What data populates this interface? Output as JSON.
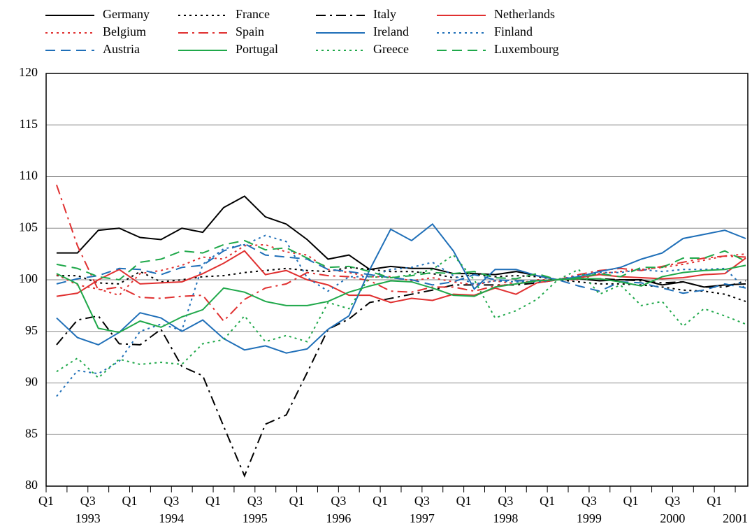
{
  "chart_data": {
    "type": "line",
    "categories": [
      "Q1",
      null,
      "Q3",
      null,
      "Q1",
      null,
      "Q3",
      null,
      "Q1",
      null,
      "Q3",
      null,
      "Q1",
      null,
      "Q3",
      null,
      "Q1",
      null,
      "Q3",
      null,
      "Q1",
      null,
      "Q3",
      null,
      "Q1",
      null,
      "Q3",
      null,
      "Q1",
      null,
      "Q3",
      null,
      "Q1",
      null
    ],
    "x_group_labels": [
      null,
      null,
      "1993",
      null,
      null,
      null,
      "1994",
      null,
      null,
      null,
      "1995",
      null,
      null,
      null,
      "1996",
      null,
      null,
      null,
      "1997",
      null,
      null,
      null,
      "1998",
      null,
      null,
      null,
      "1999",
      null,
      null,
      null,
      "2000",
      null,
      null,
      "2001"
    ],
    "ylim": [
      80,
      120
    ],
    "yticks": [
      80,
      85,
      90,
      95,
      100,
      105,
      110,
      115,
      120
    ],
    "grid": true,
    "series": [
      {
        "name": "Germany",
        "color": "#000000",
        "dash": "solid",
        "values": [
          102.6,
          102.6,
          104.8,
          105,
          104.1,
          103.9,
          105,
          104.6,
          107,
          108.1,
          106.1,
          105.4,
          103.9,
          102,
          102.4,
          101,
          101.3,
          101.1,
          101.1,
          100.6,
          100.6,
          100.5,
          100.8,
          100.4,
          100,
          100.1,
          99.9,
          100,
          100,
          99.5,
          99.8,
          99.3,
          99.5,
          99.6
        ]
      },
      {
        "name": "France",
        "color": "#000000",
        "dash": "dotted",
        "values": [
          100.4,
          100.4,
          99.7,
          99.6,
          100.8,
          99.8,
          100,
          100.3,
          100.4,
          100.7,
          100.9,
          101.1,
          100.9,
          100.8,
          101.2,
          101,
          100.8,
          100.8,
          100.6,
          100.2,
          100.5,
          100.3,
          100.4,
          100.3,
          100,
          99.8,
          99.6,
          99.6,
          99.5,
          99.3,
          99,
          98.9,
          98.6,
          97.9
        ]
      },
      {
        "name": "Italy",
        "color": "#000000",
        "dash": "dashdot",
        "values": [
          93.7,
          96.1,
          96.5,
          93.8,
          93.7,
          95.2,
          91.6,
          90.7,
          85.8,
          81,
          86,
          86.9,
          91,
          95.2,
          96.2,
          97.8,
          98.2,
          98.6,
          99,
          99.5,
          99.5,
          99.5,
          99.5,
          99.7,
          100,
          100.1,
          100.1,
          100,
          99.9,
          99.7,
          99.8,
          99.3,
          99.3,
          99.9
        ]
      },
      {
        "name": "Netherlands",
        "color": "#e03030",
        "dash": "solid",
        "values": [
          98.4,
          98.7,
          100,
          101,
          99.6,
          99.7,
          99.8,
          100.6,
          101.6,
          102.8,
          100.5,
          100.9,
          100,
          99.5,
          98.5,
          98.5,
          97.8,
          98.2,
          98,
          98.6,
          98.5,
          99.2,
          98.6,
          99.7,
          100,
          100.2,
          100.5,
          100.3,
          100.2,
          100.1,
          100.2,
          100.5,
          100.6,
          102.1
        ]
      },
      {
        "name": "Belgium",
        "color": "#e03030",
        "dash": "dotted",
        "values": [
          100.5,
          99.5,
          99.1,
          98.5,
          100.6,
          100.9,
          101.4,
          102.2,
          102,
          103.3,
          103.4,
          102.7,
          102.4,
          101,
          100.7,
          100.3,
          100.3,
          99.9,
          100.2,
          99.8,
          99.5,
          99.9,
          99.6,
          100,
          100,
          100,
          100.6,
          100.8,
          101,
          101.2,
          101.5,
          101.9,
          102.3,
          102.5
        ]
      },
      {
        "name": "Spain",
        "color": "#e03030",
        "dash": "dashdot",
        "values": [
          109.2,
          103.3,
          99,
          99.3,
          98.3,
          98.2,
          98.4,
          98.5,
          96,
          98.1,
          99.2,
          99.6,
          100.7,
          100.4,
          100.3,
          99.9,
          98.9,
          98.8,
          99.3,
          99.3,
          98.9,
          99.4,
          99.6,
          99.9,
          100,
          100.5,
          100.9,
          101.1,
          100.9,
          101.3,
          101.7,
          102.1,
          102.3,
          102.2
        ]
      },
      {
        "name": "Ireland",
        "color": "#1f6fb8",
        "dash": "solid",
        "values": [
          96.3,
          94.4,
          93.7,
          94.9,
          96.8,
          96.3,
          95,
          96.1,
          94.3,
          93.2,
          93.6,
          92.9,
          93.3,
          95.2,
          96.5,
          101,
          104.9,
          103.8,
          105.4,
          102.8,
          99.1,
          101,
          101,
          100.4,
          100,
          100.3,
          100.8,
          101.2,
          102,
          102.6,
          104,
          104.4,
          104.8,
          104
        ]
      },
      {
        "name": "Finland",
        "color": "#1f6fb8",
        "dash": "dotted",
        "values": [
          88.7,
          91.2,
          90.9,
          92.1,
          95,
          95.7,
          95.1,
          101.5,
          103,
          103.4,
          104.3,
          103.7,
          100.2,
          98.9,
          100.3,
          100.3,
          101,
          101.2,
          101.7,
          100.4,
          99.6,
          99.9,
          99.8,
          99.8,
          100,
          100.4,
          100.7,
          100.7,
          101,
          100.8,
          101,
          101,
          101.1,
          99.1
        ]
      },
      {
        "name": "Austria",
        "color": "#1f6fb8",
        "dash": "dashed",
        "values": [
          99.6,
          100.1,
          100.4,
          101.1,
          101,
          100.5,
          101.2,
          101.4,
          102.8,
          103.5,
          102.4,
          102.2,
          102,
          101,
          100.8,
          100.5,
          100.2,
          100,
          99.5,
          99.8,
          100.5,
          100,
          99.9,
          99.9,
          100,
          99.4,
          98.9,
          99.8,
          99.7,
          99.2,
          98.7,
          99,
          99.6,
          99.2
        ]
      },
      {
        "name": "Portugal",
        "color": "#1fa84a",
        "dash": "solid",
        "values": [
          100.6,
          99.6,
          95.3,
          94.9,
          96,
          95.4,
          96.4,
          97.1,
          99.2,
          98.8,
          97.9,
          97.5,
          97.5,
          97.9,
          98.8,
          99.4,
          99.9,
          99.8,
          99.2,
          98.5,
          98.4,
          99.3,
          99.6,
          99.9,
          100,
          100.1,
          100.1,
          99.8,
          99.4,
          100.3,
          100.7,
          100.9,
          101,
          101.4
        ]
      },
      {
        "name": "Greece",
        "color": "#1fa84a",
        "dash": "dotted",
        "values": [
          91.1,
          92.4,
          90.5,
          92.3,
          91.8,
          92,
          91.8,
          93.8,
          94.2,
          96.5,
          94,
          94.6,
          94,
          97.8,
          97.2,
          100.3,
          100.2,
          100.5,
          101,
          102.4,
          100,
          96.3,
          97,
          98.1,
          100,
          101,
          98.6,
          99.5,
          97.5,
          97.9,
          95.5,
          97.2,
          96.5,
          95.7
        ]
      },
      {
        "name": "Luxembourg",
        "color": "#1fa84a",
        "dash": "dashed",
        "values": [
          101.5,
          101.1,
          100.3,
          100,
          101.7,
          102,
          102.8,
          102.6,
          103.4,
          103.8,
          102.9,
          103.1,
          102.1,
          101.2,
          101.3,
          100.8,
          100.2,
          100.4,
          100.7,
          100.6,
          100.8,
          100.2,
          100.1,
          100.6,
          100,
          100.2,
          100.6,
          100.3,
          101.2,
          101.2,
          102.1,
          102.1,
          102.8,
          101.8
        ]
      }
    ]
  }
}
